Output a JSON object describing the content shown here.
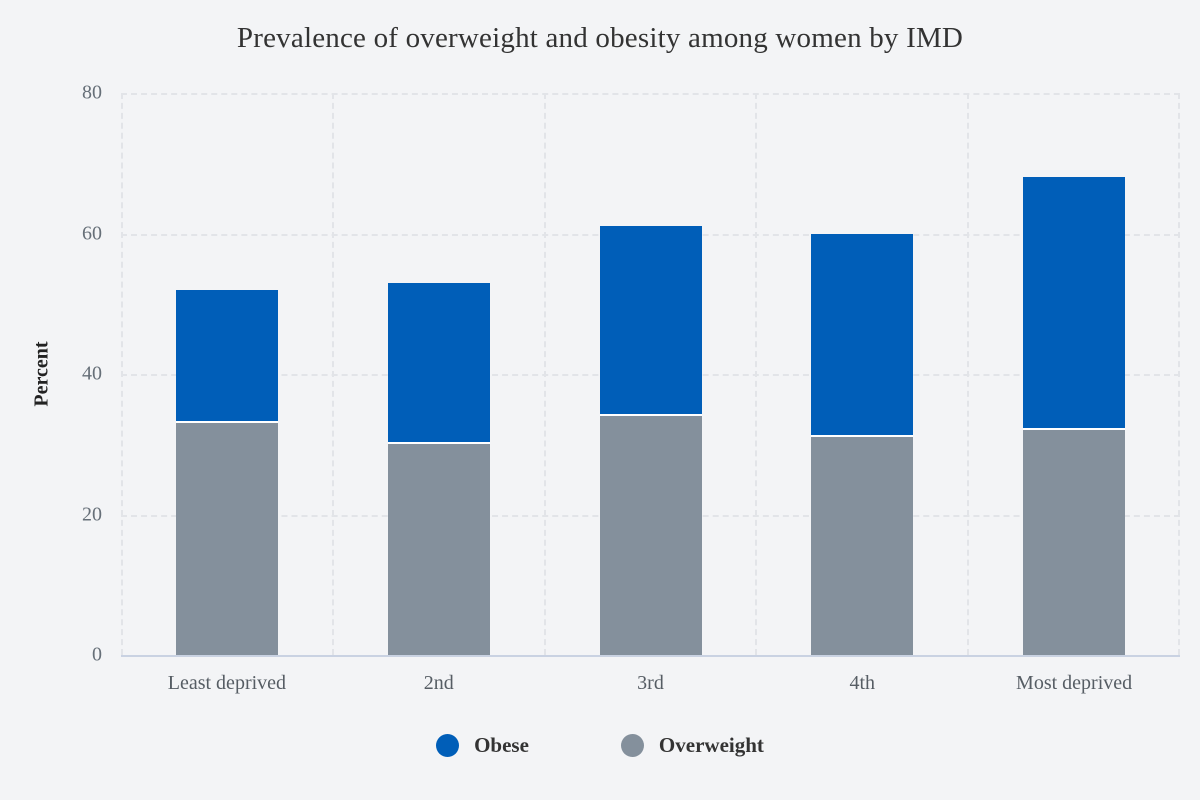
{
  "chart_data": {
    "type": "bar",
    "stacked": true,
    "title": "Prevalence of overweight and obesity among women by IMD",
    "xlabel": "",
    "ylabel": "Percent",
    "ylim": [
      0,
      80
    ],
    "yticks": [
      0,
      20,
      40,
      60,
      80
    ],
    "grid": "dashed",
    "categories": [
      "Least deprived",
      "2nd",
      "3rd",
      "4th",
      "Most deprived"
    ],
    "series": [
      {
        "name": "Overweight",
        "color": "#84909C",
        "values": [
          33,
          30,
          34,
          31,
          32
        ]
      },
      {
        "name": "Obese",
        "color": "#005EB8",
        "values": [
          19,
          23,
          27,
          29,
          36
        ]
      }
    ],
    "totals": [
      52,
      53,
      61,
      60,
      68
    ],
    "legend": [
      {
        "label": "Obese",
        "color": "#005EB8"
      },
      {
        "label": "Overweight",
        "color": "#84909C"
      }
    ],
    "legend_position": "bottom",
    "colors": {
      "background": "#f3f4f6",
      "gridline": "#e2e4e8",
      "axis_line": "#c9d2e2",
      "segment_gap": "#ffffff"
    }
  }
}
